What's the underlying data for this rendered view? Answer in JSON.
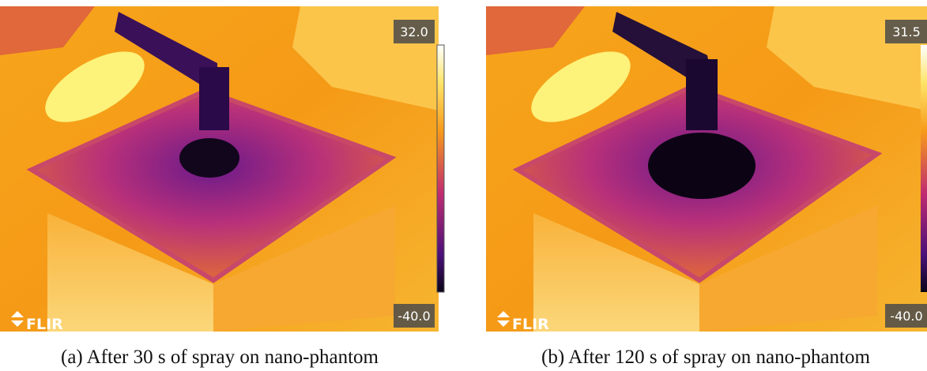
{
  "panels": [
    {
      "scale_max": "32.0",
      "scale_min": "-40.0",
      "logo": "FLIR",
      "caption": "(a) After 30 s of spray on nano-phantom"
    },
    {
      "scale_max": "31.5",
      "scale_min": "-40.0",
      "logo": "FLIR",
      "caption": "(b) After 120 s of spray on nano-phantom"
    }
  ]
}
